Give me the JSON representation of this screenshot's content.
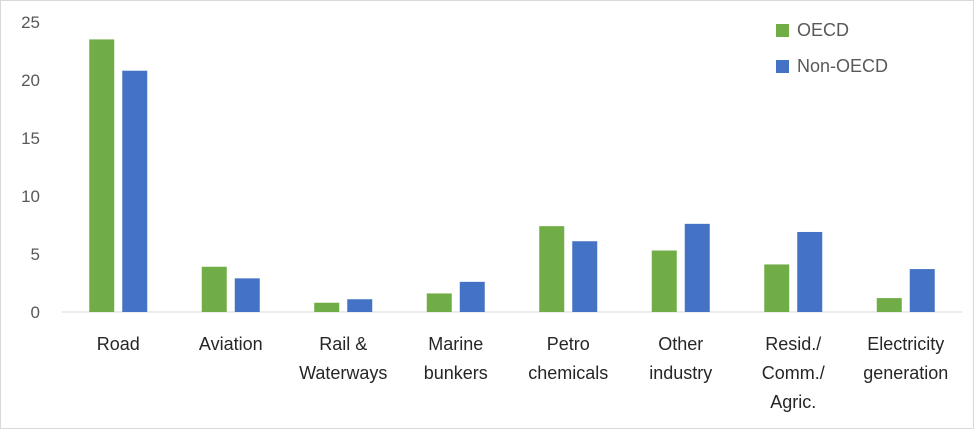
{
  "chart_data": {
    "type": "bar",
    "title": "",
    "xlabel": "",
    "ylabel": "",
    "categories": [
      [
        "Road"
      ],
      [
        "Aviation"
      ],
      [
        "Rail &",
        "Waterways"
      ],
      [
        "Marine",
        "bunkers"
      ],
      [
        "Petro",
        "chemicals"
      ],
      [
        "Other",
        "industry"
      ],
      [
        "Resid./",
        "Comm./",
        "Agric."
      ],
      [
        "Electricity",
        "generation"
      ]
    ],
    "series": [
      {
        "name": "OECD",
        "color": "#70ad47",
        "values": [
          23.5,
          3.9,
          0.8,
          1.6,
          7.4,
          5.3,
          4.1,
          1.2
        ]
      },
      {
        "name": "Non-OECD",
        "color": "#4472c4",
        "values": [
          20.8,
          2.9,
          1.1,
          2.6,
          6.1,
          7.6,
          6.9,
          3.7
        ]
      }
    ],
    "ylim": [
      0,
      25
    ],
    "yticks": [
      0,
      5,
      10,
      15,
      20,
      25
    ],
    "grid": false,
    "legend_position": "top-right"
  }
}
